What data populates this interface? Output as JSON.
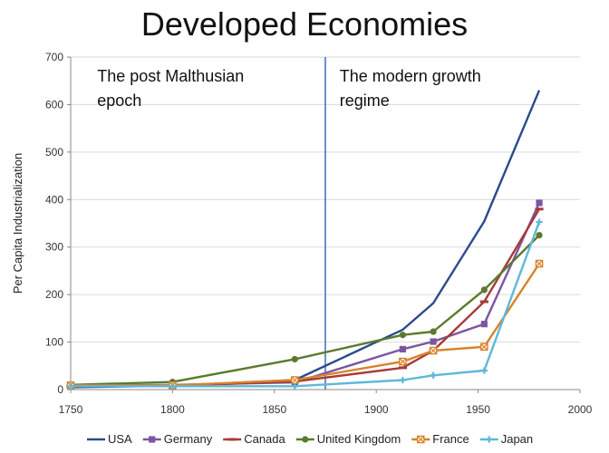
{
  "chart_data": {
    "type": "line",
    "title": "Developed Economies",
    "xlabel": "",
    "ylabel": "Per Capita Industrialization",
    "xlim": [
      1750,
      2000
    ],
    "ylim": [
      0,
      700
    ],
    "xticks": [
      1750,
      1800,
      1850,
      1900,
      1950,
      2000
    ],
    "yticks": [
      0,
      100,
      200,
      300,
      400,
      500,
      600,
      700
    ],
    "grid": "horizontal",
    "legend_position": "bottom",
    "divider_x": 1875,
    "annotations": [
      {
        "lines": [
          "The post Malthusian",
          "epoch"
        ]
      },
      {
        "lines": [
          "The modern growth",
          "regime"
        ]
      }
    ],
    "series": [
      {
        "name": "USA",
        "color": "#2b4a8c",
        "marker": "none",
        "points": [
          [
            1750,
            5
          ],
          [
            1800,
            8
          ],
          [
            1860,
            20
          ],
          [
            1913,
            126
          ],
          [
            1928,
            182
          ],
          [
            1953,
            354
          ],
          [
            1980,
            630
          ]
        ]
      },
      {
        "name": "Germany",
        "color": "#7b56a0",
        "marker": "square",
        "points": [
          [
            1750,
            8
          ],
          [
            1800,
            10
          ],
          [
            1860,
            15
          ],
          [
            1913,
            85
          ],
          [
            1928,
            101
          ],
          [
            1953,
            138
          ],
          [
            1980,
            393
          ]
        ]
      },
      {
        "name": "Canada",
        "color": "#a83a3a",
        "marker": "dash",
        "points": [
          [
            1750,
            7
          ],
          [
            1800,
            8
          ],
          [
            1860,
            17
          ],
          [
            1913,
            46
          ],
          [
            1928,
            82
          ],
          [
            1953,
            185
          ],
          [
            1980,
            380
          ]
        ]
      },
      {
        "name": "United Kingdom",
        "color": "#5b7a2e",
        "marker": "circle",
        "points": [
          [
            1750,
            10
          ],
          [
            1800,
            16
          ],
          [
            1860,
            64
          ],
          [
            1913,
            115
          ],
          [
            1928,
            122
          ],
          [
            1953,
            210
          ],
          [
            1980,
            325
          ]
        ]
      },
      {
        "name": "France",
        "color": "#d8822a",
        "marker": "cross",
        "points": [
          [
            1750,
            9
          ],
          [
            1800,
            9
          ],
          [
            1860,
            20
          ],
          [
            1913,
            59
          ],
          [
            1928,
            82
          ],
          [
            1953,
            90
          ],
          [
            1980,
            265
          ]
        ]
      },
      {
        "name": "Japan",
        "color": "#5fb8d8",
        "marker": "plus",
        "points": [
          [
            1750,
            7
          ],
          [
            1800,
            7
          ],
          [
            1860,
            7
          ],
          [
            1913,
            20
          ],
          [
            1928,
            30
          ],
          [
            1953,
            40
          ],
          [
            1980,
            353
          ]
        ]
      }
    ]
  }
}
